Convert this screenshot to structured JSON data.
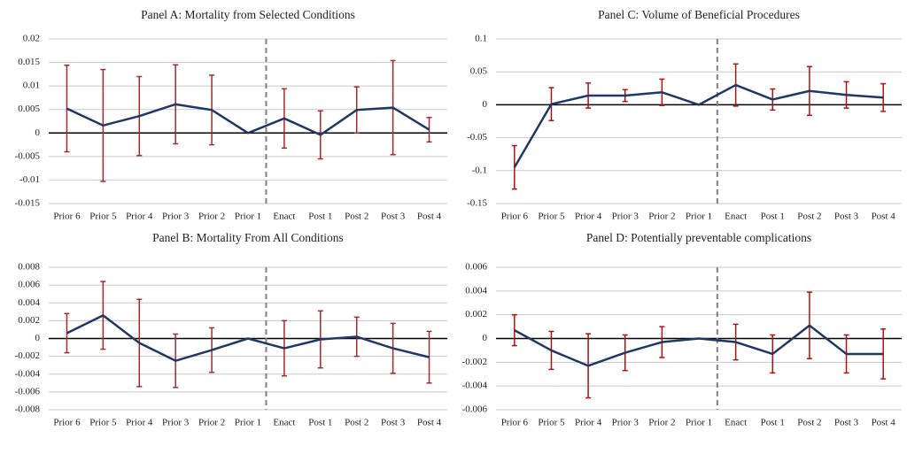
{
  "chart_data": [
    {
      "type": "line",
      "title": "Panel A: Mortality from Selected Conditions",
      "categories": [
        "Prior 6",
        "Prior 5",
        "Prior 4",
        "Prior 3",
        "Prior 2",
        "Prior 1",
        "Enact",
        "Post 1",
        "Post 2",
        "Post 3",
        "Post 4"
      ],
      "values": [
        0.0052,
        0.0016,
        0.0036,
        0.0061,
        0.0049,
        0,
        0.0031,
        -0.0004,
        0.0049,
        0.0054,
        0.0007
      ],
      "errors": [
        0.0092,
        0.0119,
        0.0084,
        0.0084,
        0.0074,
        null,
        0.0063,
        0.0051,
        0.0049,
        0.01,
        0.0026
      ],
      "color": "#1f3864",
      "error_color": "#a52a2a",
      "ylim": [
        -0.015,
        0.02
      ],
      "yticks": [
        -0.015,
        -0.01,
        -0.005,
        0,
        0.005,
        0.01,
        0.015,
        0.02
      ],
      "grid": true
    },
    {
      "type": "line",
      "title": "Panel B: Mortality From All Conditions",
      "categories": [
        "Prior 6",
        "Prior 5",
        "Prior 4",
        "Prior 3",
        "Prior 2",
        "Prior 1",
        "Enact",
        "Post 1",
        "Post 2",
        "Post 3",
        "Post 4"
      ],
      "values": [
        0.0006,
        0.0026,
        -0.0005,
        -0.0025,
        -0.0013,
        0,
        -0.0011,
        -0.0001,
        0.0002,
        -0.0011,
        -0.0021
      ],
      "errors": [
        0.0022,
        0.0038,
        0.0049,
        0.003,
        0.0025,
        null,
        0.0031,
        0.0032,
        0.0022,
        0.0028,
        0.0029
      ],
      "color": "#1f3864",
      "error_color": "#a52a2a",
      "ylim": [
        -0.008,
        0.008
      ],
      "yticks": [
        -0.008,
        -0.006,
        -0.004,
        -0.002,
        0,
        0.002,
        0.004,
        0.006,
        0.008
      ],
      "grid": true
    },
    {
      "type": "line",
      "title": "Panel C: Volume of Beneficial Procedures",
      "categories": [
        "Prior 6",
        "Prior 5",
        "Prior 4",
        "Prior 3",
        "Prior 2",
        "Prior 1",
        "Enact",
        "Post 1",
        "Post 2",
        "Post 3",
        "Post 4"
      ],
      "values": [
        -0.095,
        0.001,
        0.014,
        0.014,
        0.019,
        0,
        0.03,
        0.008,
        0.021,
        0.015,
        0.011
      ],
      "errors": [
        0.033,
        0.025,
        0.019,
        0.009,
        0.02,
        null,
        0.032,
        0.016,
        0.037,
        0.02,
        0.021
      ],
      "color": "#1f3864",
      "error_color": "#b01010",
      "ylim": [
        -0.15,
        0.1
      ],
      "yticks": [
        -0.15,
        -0.1,
        -0.05,
        0,
        0.05,
        0.1
      ],
      "grid": true
    },
    {
      "type": "line",
      "title": "Panel D: Potentially preventable complications",
      "categories": [
        "Prior 6",
        "Prior 5",
        "Prior 4",
        "Prior 3",
        "Prior 2",
        "Prior 1",
        "Enact",
        "Post 1",
        "Post 2",
        "Post 3",
        "Post 4"
      ],
      "values": [
        0.0007,
        -0.001,
        -0.0023,
        -0.0012,
        -0.0003,
        0,
        -0.0003,
        -0.0013,
        0.0011,
        -0.0013,
        -0.0013
      ],
      "errors": [
        0.0013,
        0.0016,
        0.0027,
        0.0015,
        0.0013,
        null,
        0.0015,
        0.0016,
        0.0028,
        0.0016,
        0.0021
      ],
      "color": "#1f3864",
      "error_color": "#b01010",
      "ylim": [
        -0.006,
        0.006
      ],
      "yticks": [
        -0.006,
        -0.004,
        -0.002,
        0,
        0.002,
        0.004,
        0.006
      ],
      "grid": true
    }
  ]
}
